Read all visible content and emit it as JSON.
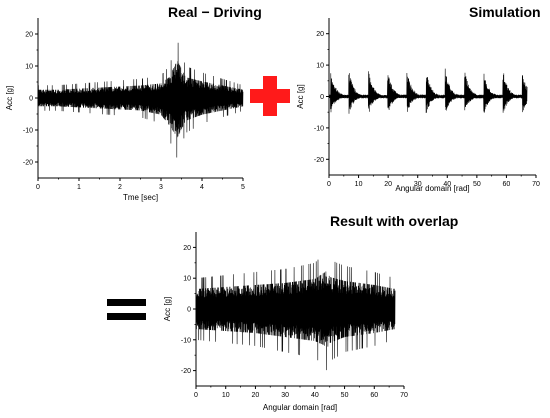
{
  "titles": {
    "real": "Real − Driving",
    "simulation": "Simulation",
    "result": "Result with overlap"
  },
  "operators": {
    "plus_color": "#ff1a1a",
    "equals_color": "#000000"
  },
  "chart_data": [
    {
      "id": "real",
      "type": "line",
      "title": "Real − Driving",
      "xlabel": "Tme [sec]",
      "ylabel": "Acc [g]",
      "xlim": [
        0,
        5
      ],
      "ylim": [
        -25,
        25
      ],
      "xticks": [
        0,
        1,
        2,
        3,
        4,
        5
      ],
      "yticks": [
        -20,
        -10,
        0,
        10,
        20
      ],
      "color": "#000000",
      "series": [
        {
          "x": [
            0,
            0.5,
            1,
            1.5,
            2,
            2.5,
            3,
            3.2,
            3.4,
            3.5,
            3.6,
            4,
            4.5,
            5
          ],
          "y_max": [
            4,
            4,
            4.5,
            5,
            5.5,
            6,
            7,
            10,
            18,
            14,
            10,
            8,
            6,
            4
          ],
          "y_min": [
            -4,
            -4,
            -4.5,
            -5,
            -5.5,
            -6,
            -8,
            -13,
            -19,
            -15,
            -11,
            -8,
            -6,
            -4
          ]
        }
      ]
    },
    {
      "id": "simulation",
      "type": "line",
      "title": "Simulation",
      "xlabel": "Angular domain [rad]",
      "ylabel": "Acc [g]",
      "xlim": [
        0,
        70
      ],
      "ylim": [
        -25,
        25
      ],
      "xticks": [
        0,
        10,
        20,
        30,
        40,
        50,
        60,
        70
      ],
      "yticks": [
        -20,
        -10,
        0,
        10,
        20
      ],
      "color": "#000000",
      "series": [
        {
          "impulse_x": [
            0.5,
            6.7,
            13.3,
            19.8,
            26.3,
            32.8,
            39.3,
            45.8,
            52.3,
            58.8,
            65.3
          ],
          "impulse_y_max": [
            9,
            9,
            9,
            9,
            9,
            9,
            9,
            9,
            9,
            9,
            9
          ],
          "impulse_y_min": [
            -6,
            -6,
            -6,
            -6,
            -6,
            -6,
            -6,
            -6,
            -6,
            -6,
            -6
          ],
          "x_end": 67
        }
      ]
    },
    {
      "id": "result",
      "type": "line",
      "title": "Result with overlap",
      "xlabel": "Angular domain [rad]",
      "ylabel": "Acc [g]",
      "xlim": [
        0,
        70
      ],
      "ylim": [
        -25,
        25
      ],
      "xticks": [
        0,
        10,
        20,
        30,
        40,
        50,
        60,
        70
      ],
      "yticks": [
        -20,
        -10,
        0,
        10,
        20
      ],
      "color": "#000000",
      "series": [
        {
          "x": [
            0,
            10,
            20,
            30,
            40,
            43,
            44,
            45,
            50,
            60,
            67
          ],
          "y_max": [
            10,
            11,
            12,
            13,
            15,
            18,
            19,
            16,
            14,
            12,
            10
          ],
          "y_min": [
            -10,
            -11,
            -12,
            -14,
            -16,
            -18,
            -20,
            -17,
            -14,
            -12,
            -10
          ],
          "x_end": 67
        }
      ]
    }
  ]
}
